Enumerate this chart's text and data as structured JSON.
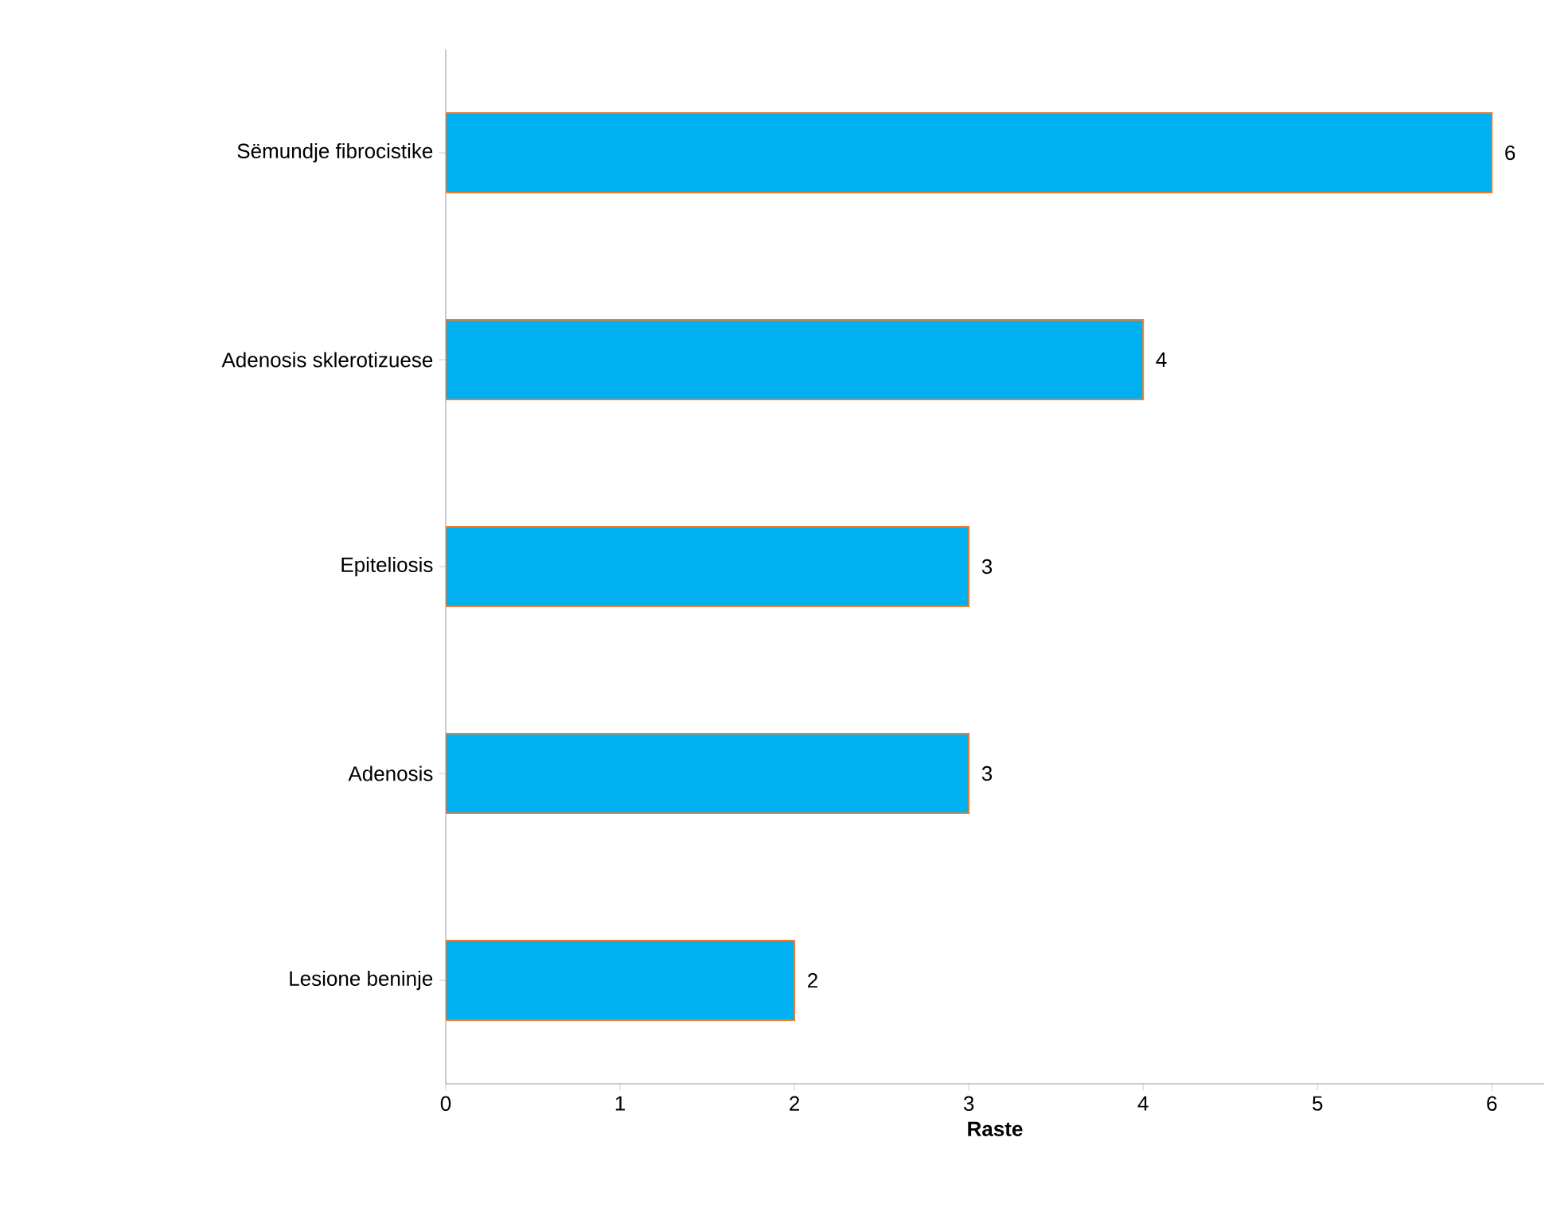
{
  "chart_data": {
    "type": "bar",
    "orientation": "horizontal",
    "xlabel": "Raste",
    "categories": [
      "Sëmundje fibrocistike",
      "Adenosis sklerotizuese",
      "Epiteliosis",
      "Adenosis",
      "Lesione beninje"
    ],
    "values": [
      6,
      4,
      3,
      3,
      2
    ],
    "color": "#00b0f0",
    "xlim": [
      0,
      6
    ],
    "xticks": [
      0,
      1,
      2,
      3,
      4,
      5,
      6
    ],
    "data_labels": true
  }
}
